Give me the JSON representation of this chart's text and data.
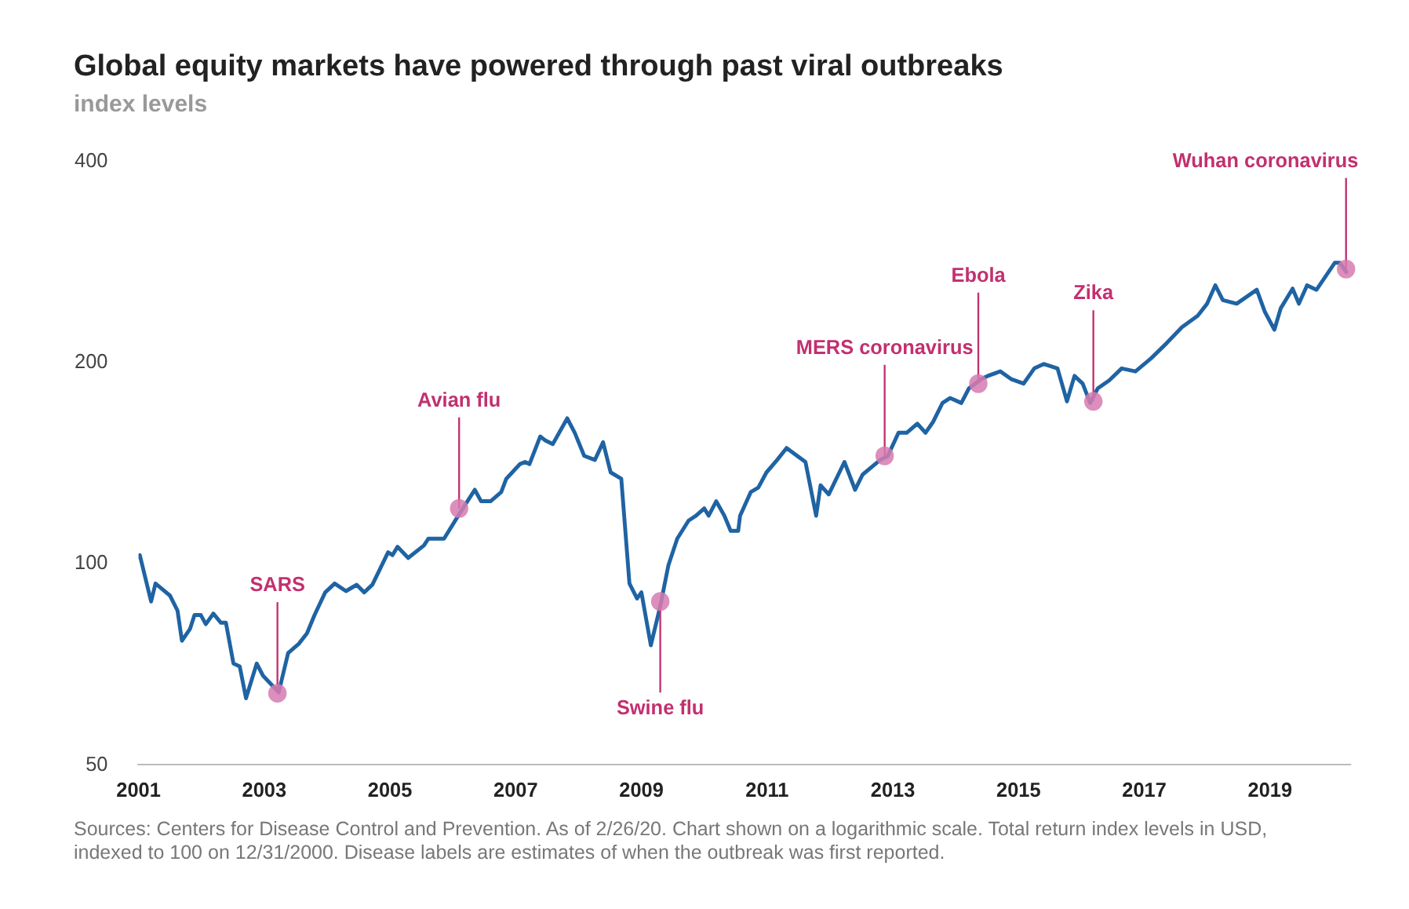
{
  "chart_data": {
    "type": "line",
    "title": "Global equity markets have powered through past viral outbreaks",
    "subtitle": "index levels",
    "x": [
      2001.0,
      2001.02,
      2001.2,
      2001.27,
      2001.5,
      2001.62,
      2001.69,
      2001.82,
      2001.89,
      2001.99,
      2002.07,
      2002.19,
      2002.31,
      2002.39,
      2002.51,
      2002.61,
      2002.71,
      2002.88,
      2002.98,
      2003.23,
      2003.38,
      2003.55,
      2003.68,
      2003.8,
      2003.97,
      2004.12,
      2004.3,
      2004.47,
      2004.59,
      2004.72,
      2004.97,
      2005.04,
      2005.12,
      2005.29,
      2005.54,
      2005.61,
      2005.78,
      2005.86,
      2006.11,
      2006.28,
      2006.35,
      2006.45,
      2006.6,
      2006.77,
      2006.85,
      2007.07,
      2007.15,
      2007.22,
      2007.39,
      2007.47,
      2007.59,
      2007.82,
      2007.94,
      2008.09,
      2008.26,
      2008.39,
      2008.51,
      2008.68,
      2008.81,
      2008.93,
      2009.0,
      2009.15,
      2009.3,
      2009.43,
      2009.57,
      2009.75,
      2009.87,
      2010.0,
      2010.07,
      2010.19,
      2010.32,
      2010.42,
      2010.54,
      2010.57,
      2010.74,
      2010.86,
      2010.99,
      2011.16,
      2011.31,
      2011.61,
      2011.78,
      2011.85,
      2011.98,
      2012.23,
      2012.4,
      2012.52,
      2012.8,
      2012.92,
      2013.09,
      2013.22,
      2013.39,
      2013.52,
      2013.64,
      2013.79,
      2013.91,
      2014.09,
      2014.21,
      2014.41,
      2014.51,
      2014.71,
      2014.88,
      2015.08,
      2015.25,
      2015.4,
      2015.62,
      2015.77,
      2015.89,
      2016.02,
      2016.14,
      2016.26,
      2016.44,
      2016.64,
      2016.86,
      2017.11,
      2017.36,
      2017.6,
      2017.85,
      2018.0,
      2018.13,
      2018.25,
      2018.47,
      2018.79,
      2018.92,
      2019.07,
      2019.17,
      2019.36,
      2019.46,
      2019.59,
      2019.74,
      2020.03,
      2020.11,
      2020.23
    ],
    "values": [
      101.6,
      103,
      87.8,
      93.4,
      89.6,
      85.1,
      76.7,
      79.9,
      83.8,
      83.8,
      81.2,
      84.2,
      81.6,
      81.6,
      70.9,
      70.2,
      62.9,
      70.9,
      68.0,
      64.2,
      73.5,
      75.9,
      78.7,
      83.8,
      90.6,
      93.4,
      91.0,
      93.0,
      90.6,
      93.0,
      104,
      103,
      106,
      102,
      106.5,
      109,
      109,
      109,
      119,
      126,
      129,
      124,
      124,
      128,
      134,
      141,
      142,
      141,
      155,
      153,
      151,
      165,
      157,
      145,
      143,
      152,
      137,
      134,
      93.4,
      88.7,
      90.6,
      75.5,
      86.4,
      99.5,
      109,
      116,
      118,
      121,
      118,
      124,
      118,
      112,
      112,
      118,
      128,
      130,
      137,
      143,
      149,
      142,
      118,
      131,
      127,
      142,
      129,
      136,
      143,
      145,
      157,
      157,
      162,
      157,
      163,
      174,
      177,
      174,
      183,
      189,
      191,
      194,
      189,
      186,
      196,
      199,
      196,
      175,
      191,
      186,
      174,
      183,
      188,
      196,
      194,
      203,
      214,
      226,
      235,
      245,
      261,
      248,
      245,
      257,
      238,
      224,
      241,
      258,
      245,
      261,
      257,
      282,
      282,
      272
    ],
    "color": "#1f63a3",
    "marker": "none",
    "log": true,
    "xlim": [
      2001,
      2020.28
    ],
    "xticks": [
      2001,
      2003,
      2005,
      2007,
      2009,
      2011,
      2013,
      2015,
      2017,
      2019
    ],
    "ylim": [
      50,
      400
    ],
    "yticks": [
      50,
      100,
      200,
      400
    ],
    "annotations": [
      {
        "text": "SARS",
        "x": 2003.21,
        "y": 64
      },
      {
        "text": "Avian flu",
        "x": 2006.1,
        "y": 121
      },
      {
        "text": "Swine flu",
        "x": 2009.3,
        "y": 87.8
      },
      {
        "text": "MERS coronavirus",
        "x": 2012.87,
        "y": 145
      },
      {
        "text": "Ebola",
        "x": 2014.36,
        "y": 186
      },
      {
        "text": "Zika",
        "x": 2016.19,
        "y": 175
      },
      {
        "text": "Wuhan coronavirus",
        "x": 2020.21,
        "y": 276
      },
      "Sources: Centers for Disease Control and Prevention. As of 2/26/20. Chart shown on a logarithmic scale. Total return index levels in USD, indexed to 100 on 12/31/2000. Disease labels are estimates of when the outbreak was first reported."
    ]
  }
}
